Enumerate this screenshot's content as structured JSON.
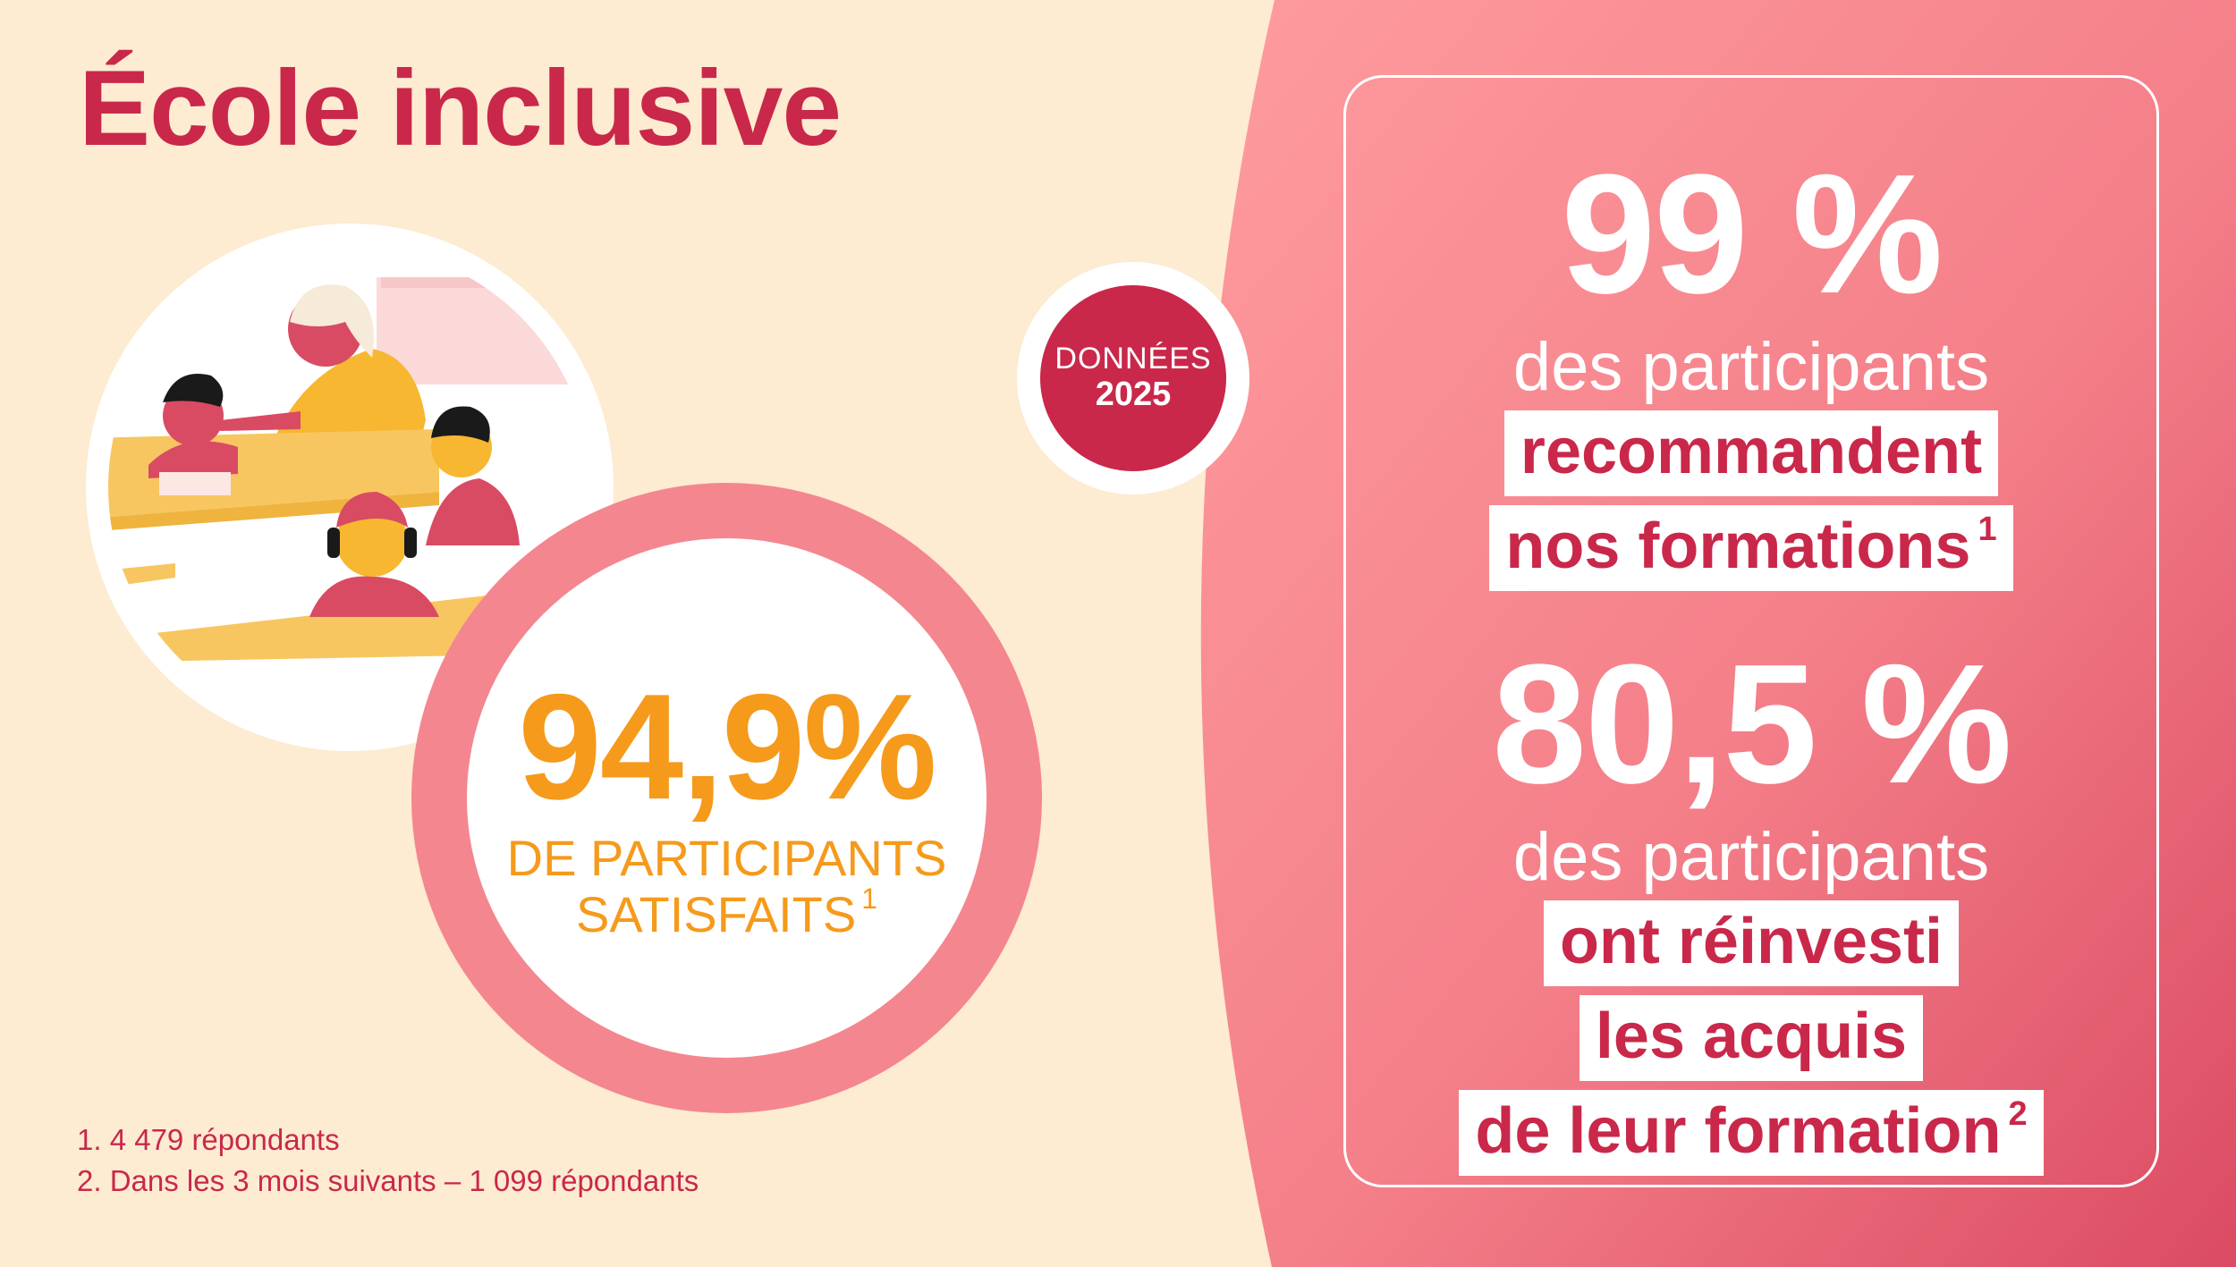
{
  "title": "École inclusive",
  "badge": {
    "line1": "DONNÉES",
    "line2": "2025"
  },
  "satisfaction": {
    "value": "94,9%",
    "label_line1": "DE PARTICIPANTS",
    "label_line2": "SATISFAITS",
    "note": "1"
  },
  "stats": [
    {
      "value": "99 %",
      "text": "des participants",
      "highlight": [
        "recommandent",
        "nos formations"
      ],
      "note": "1"
    },
    {
      "value": "80,5 %",
      "text": "des participants",
      "highlight": [
        "ont réinvesti",
        "les acquis",
        "de leur formation"
      ],
      "note": "2"
    }
  ],
  "footnotes": [
    "1. 4 479 répondants",
    "2. Dans les 3 mois suivants – 1 099 répondants"
  ],
  "colors": {
    "background": "#fdebd2",
    "accent_red": "#c9284a",
    "pink": "#f4868f",
    "orange": "#f59a1b"
  },
  "illustration": "classroom-illustration"
}
